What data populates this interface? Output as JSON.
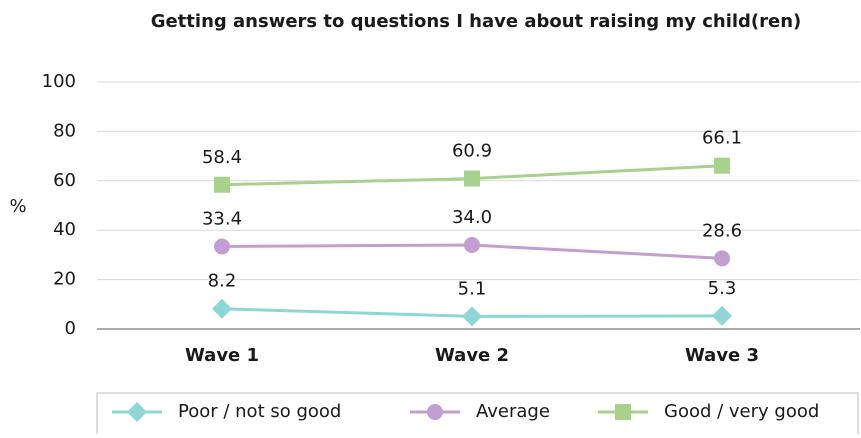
{
  "chart_data": {
    "type": "line",
    "title": "Getting answers to questions I have about raising my child(ren)",
    "y_label": "%",
    "categories": [
      "Wave 1",
      "Wave 2",
      "Wave 3"
    ],
    "series": [
      {
        "name": "Poor / not so good",
        "color": "#8fd7d5",
        "marker": "diamond",
        "values": [
          8.2,
          5.1,
          5.3
        ],
        "value_labels": [
          "8.2",
          "5.1",
          "5.3"
        ]
      },
      {
        "name": "Average",
        "color": "#c39fd1",
        "marker": "circle",
        "values": [
          33.4,
          34.0,
          28.6
        ],
        "value_labels": [
          "33.4",
          "34.0",
          "28.6"
        ]
      },
      {
        "name": "Good / very good",
        "color": "#a9d18e",
        "marker": "square",
        "values": [
          58.4,
          60.9,
          66.1
        ],
        "value_labels": [
          "58.4",
          "60.9",
          "66.1"
        ]
      }
    ],
    "ylim": [
      0,
      100
    ],
    "yticks": [
      0,
      20,
      40,
      60,
      80,
      100
    ],
    "grid": true,
    "legend": "bottom"
  }
}
